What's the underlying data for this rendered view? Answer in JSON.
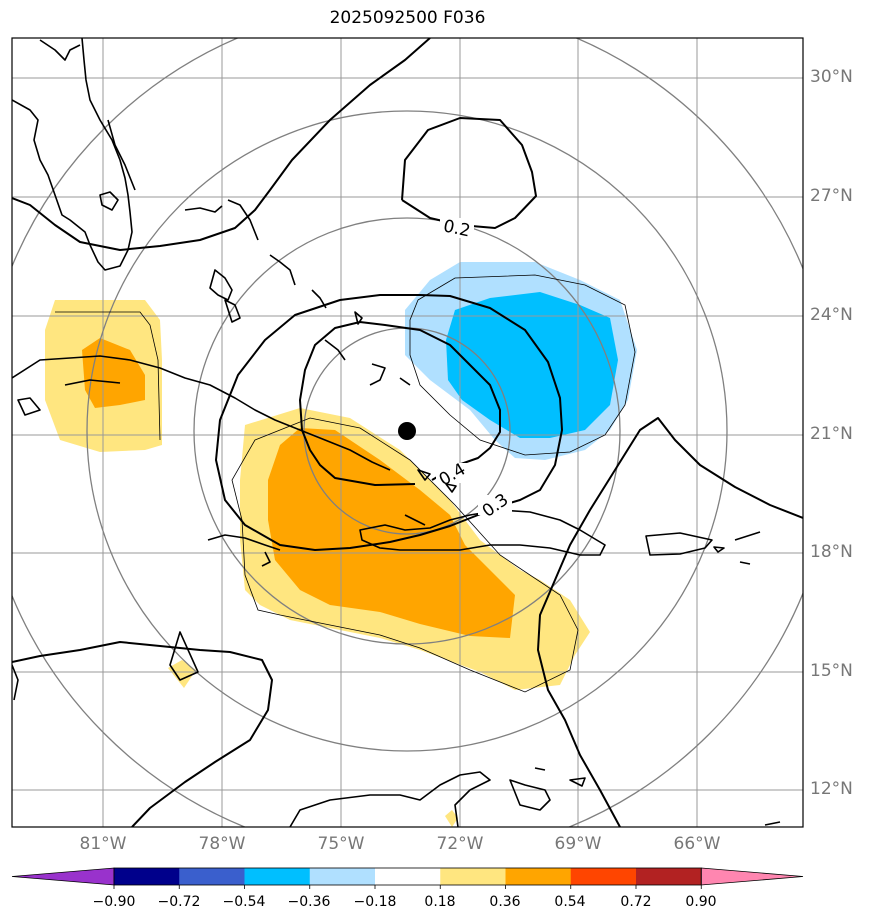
{
  "title": "2025092500 F036",
  "latitude_labels": [
    "30°N",
    "27°N",
    "24°N",
    "21°N",
    "18°N",
    "15°N",
    "12°N"
  ],
  "longitude_labels": [
    "81°W",
    "78°W",
    "75°W",
    "72°W",
    "69°W",
    "66°W"
  ],
  "contour_labels": [
    "0.2",
    "0.3",
    "0.4"
  ],
  "colorbar": {
    "ticks": [
      "−0.90",
      "−0.72",
      "−0.54",
      "−0.36",
      "−0.18",
      "0.18",
      "0.36",
      "0.54",
      "0.72",
      "0.90"
    ],
    "colors": [
      "#9932cc",
      "#00008b",
      "#3a5fcd",
      "#00bfff",
      "#b0e0ff",
      "#ffffff",
      "#ffe680",
      "#ffa500",
      "#ff4500",
      "#b22222",
      "#ff86b0"
    ]
  },
  "center_marker": {
    "lat": 21.0,
    "lon": -73.3
  },
  "colors": {
    "positive_light": "#ffe680",
    "positive_dark": "#ffa500",
    "negative_light": "#b0e0ff",
    "negative_dark": "#00bfff",
    "graticule": "#999999",
    "range_rings": "#808080"
  }
}
